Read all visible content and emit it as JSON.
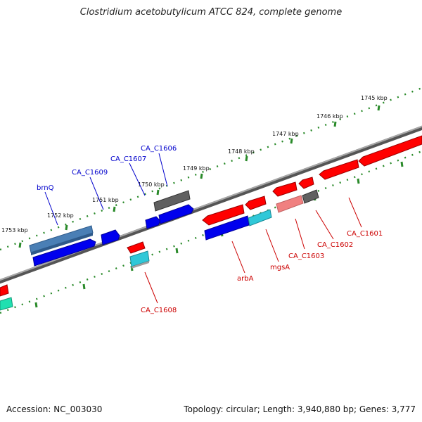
{
  "title": "Clostridium acetobutylicum ATCC 824, complete genome",
  "accession": "Accession: NC_003030",
  "topology": "Topology: circular; Length: 3,940,880 bp; Genes: 3,777",
  "colors": {
    "forward_label": "#0000cc",
    "reverse_label": "#cc0000",
    "tick": "#2a8a2a",
    "backbone": "#7a7a7a",
    "red_gene": "#ff0000",
    "blue_gene": "#0000ee",
    "steel_gene": "#4a7fb5",
    "gray_gene": "#606060",
    "cyan_gene": "#30c8d8",
    "teal_gene": "#20e0b0",
    "pink_gene": "#f08080"
  },
  "scale": {
    "ticks": [
      {
        "label": "1745 kbp"
      },
      {
        "label": "1746 kbp"
      },
      {
        "label": "1747 kbp"
      },
      {
        "label": "1748 kbp"
      },
      {
        "label": "1749 kbp"
      },
      {
        "label": "1750 kbp"
      },
      {
        "label": "1751 kbp"
      },
      {
        "label": "1752 kbp"
      },
      {
        "label": "1753 kbp"
      }
    ]
  },
  "gene_labels": {
    "forward": [
      "brnQ",
      "CA_C1609",
      "CA_C1607",
      "CA_C1606"
    ],
    "reverse": [
      "CA_C1608",
      "arbA",
      "mgsA",
      "CA_C1603",
      "CA_C1602",
      "CA_C1601"
    ]
  }
}
